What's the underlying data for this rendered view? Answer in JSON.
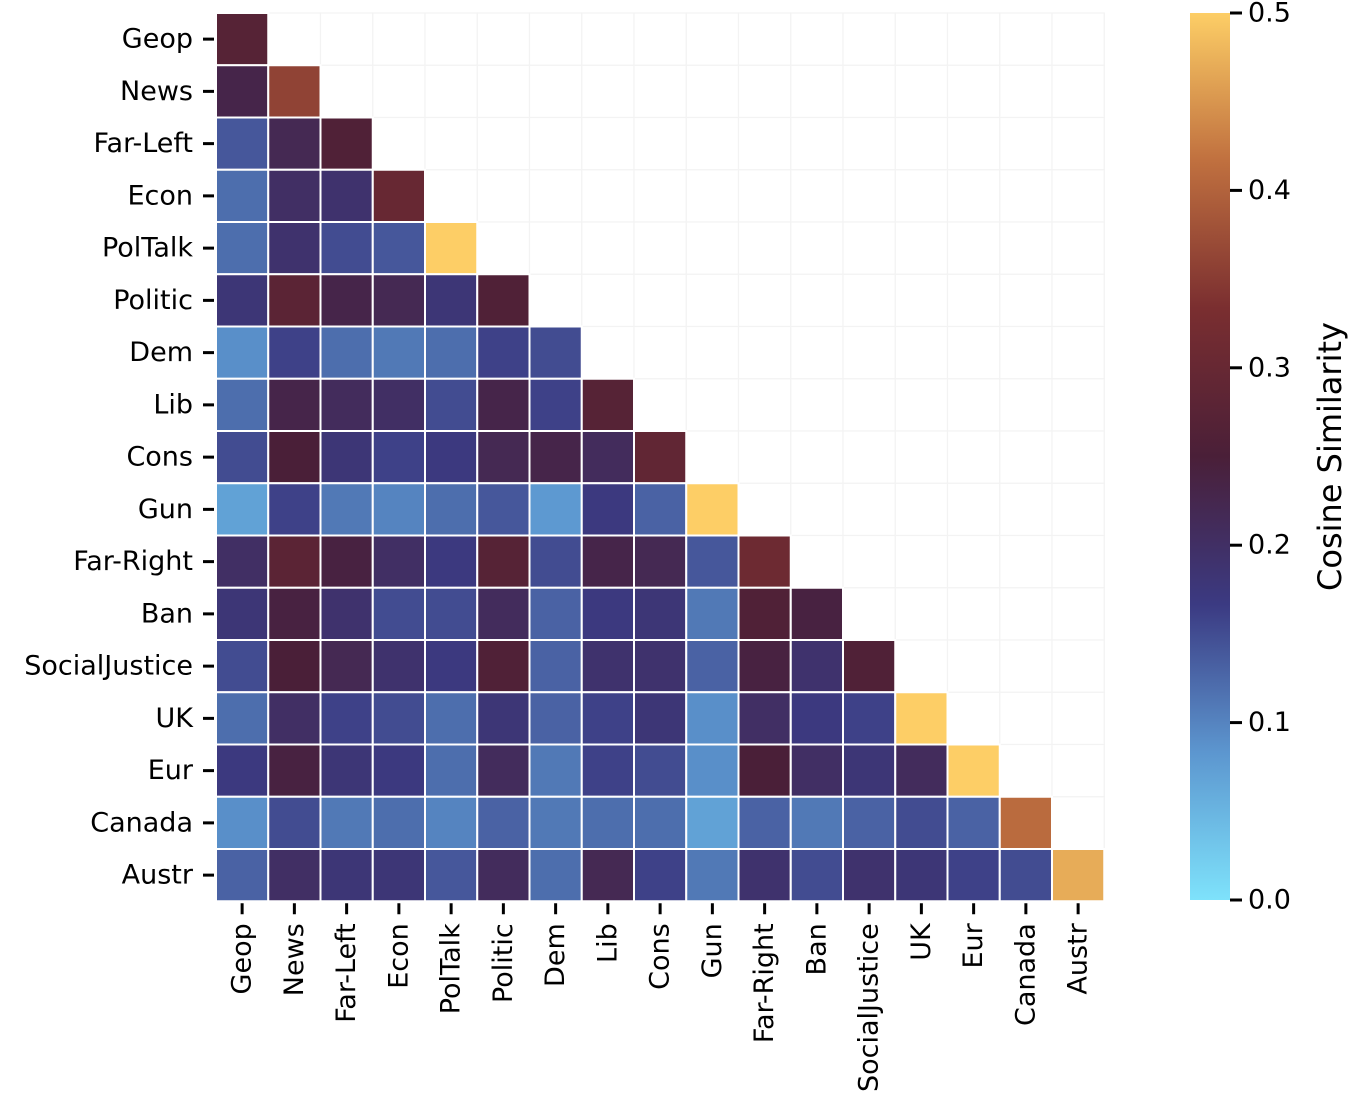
{
  "chart_data": {
    "type": "heatmap",
    "mask": "upper-triangle",
    "categories": [
      "Geop",
      "News",
      "Far-Left",
      "Econ",
      "PolTalk",
      "Politic",
      "Dem",
      "Lib",
      "Cons",
      "Gun",
      "Far-Right",
      "Ban",
      "SocialJustice",
      "UK",
      "Eur",
      "Canada",
      "Austr"
    ],
    "values": [
      [
        0.27
      ],
      [
        0.23,
        0.36
      ],
      [
        0.14,
        0.22,
        0.26
      ],
      [
        0.12,
        0.2,
        0.19,
        0.3
      ],
      [
        0.12,
        0.19,
        0.15,
        0.14,
        0.5
      ],
      [
        0.18,
        0.28,
        0.23,
        0.22,
        0.18,
        0.26
      ],
      [
        0.09,
        0.16,
        0.12,
        0.11,
        0.12,
        0.16,
        0.15
      ],
      [
        0.12,
        0.23,
        0.21,
        0.2,
        0.15,
        0.23,
        0.16,
        0.27
      ],
      [
        0.15,
        0.25,
        0.18,
        0.16,
        0.17,
        0.22,
        0.23,
        0.21,
        0.29
      ],
      [
        0.07,
        0.16,
        0.11,
        0.1,
        0.12,
        0.14,
        0.08,
        0.17,
        0.13,
        0.5
      ],
      [
        0.2,
        0.28,
        0.24,
        0.2,
        0.17,
        0.27,
        0.15,
        0.23,
        0.22,
        0.14,
        0.31
      ],
      [
        0.18,
        0.24,
        0.19,
        0.15,
        0.15,
        0.21,
        0.13,
        0.17,
        0.18,
        0.11,
        0.26,
        0.24
      ],
      [
        0.15,
        0.25,
        0.22,
        0.19,
        0.17,
        0.26,
        0.13,
        0.19,
        0.19,
        0.13,
        0.24,
        0.19,
        0.26
      ],
      [
        0.12,
        0.2,
        0.16,
        0.15,
        0.12,
        0.18,
        0.13,
        0.16,
        0.18,
        0.09,
        0.2,
        0.17,
        0.16,
        0.5
      ],
      [
        0.17,
        0.24,
        0.18,
        0.17,
        0.12,
        0.21,
        0.11,
        0.16,
        0.15,
        0.09,
        0.25,
        0.2,
        0.18,
        0.21,
        0.5
      ],
      [
        0.09,
        0.15,
        0.11,
        0.12,
        0.1,
        0.13,
        0.11,
        0.12,
        0.12,
        0.07,
        0.13,
        0.11,
        0.13,
        0.15,
        0.13,
        0.41
      ],
      [
        0.13,
        0.2,
        0.18,
        0.18,
        0.14,
        0.21,
        0.12,
        0.22,
        0.16,
        0.11,
        0.19,
        0.15,
        0.19,
        0.18,
        0.16,
        0.15,
        0.47
      ]
    ],
    "colorbar": {
      "label": "Cosine Similarity",
      "range": [
        0.0,
        0.5
      ],
      "ticks": [
        0.0,
        0.1,
        0.2,
        0.3,
        0.4,
        0.5
      ],
      "tick_labels": [
        "0.0",
        "0.1",
        "0.2",
        "0.3",
        "0.4",
        "0.5"
      ]
    },
    "colors": {
      "colormap_stops": [
        "#7ee2fb",
        "#5c96cf",
        "#3b3a82",
        "#4a1f38",
        "#7a2e30",
        "#c0703f",
        "#fdce66"
      ],
      "cell_border": "#ffffff",
      "masked_cell": "#ffffff",
      "masked_grid": "#f3f3f3",
      "tick_color": "#000000"
    }
  }
}
